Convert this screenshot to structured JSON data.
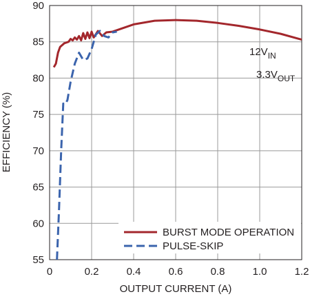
{
  "chart_data": {
    "type": "line",
    "xlabel": "OUTPUT CURRENT (A)",
    "ylabel": "EFFICIENCY (%)",
    "xlim": [
      0,
      1.2
    ],
    "xticks": [
      0,
      0.2,
      0.4,
      0.6,
      0.8,
      {
        "value": 1,
        "label": "1.0"
      },
      1.2
    ],
    "ylim": [
      55,
      90
    ],
    "yticks": [
      55,
      60,
      65,
      70,
      75,
      80,
      85,
      90
    ],
    "grid": true,
    "legend": "lower right",
    "annotations": [
      {
        "text": "12V",
        "sub": "IN"
      },
      {
        "text": "3.3V",
        "sub": "OUT"
      }
    ],
    "series": [
      {
        "name": "BURST MODE OPERATION",
        "color": "#a3272c",
        "style": "solid",
        "x": [
          0.02,
          0.03,
          0.04,
          0.05,
          0.07,
          0.09,
          0.1,
          0.11,
          0.12,
          0.13,
          0.14,
          0.15,
          0.16,
          0.17,
          0.18,
          0.19,
          0.2,
          0.21,
          0.23,
          0.25,
          0.27,
          0.3,
          0.35,
          0.4,
          0.5,
          0.6,
          0.7,
          0.8,
          0.9,
          1.0,
          1.1,
          1.2
        ],
        "values": [
          81.5,
          82,
          83.5,
          84.3,
          84.8,
          85.0,
          85.4,
          85.2,
          85.6,
          85.3,
          85.8,
          85.2,
          86.2,
          85.4,
          86.3,
          85.5,
          86.4,
          85.6,
          86.5,
          85.8,
          86.3,
          86.4,
          86.9,
          87.4,
          87.9,
          88.0,
          87.9,
          87.6,
          87.2,
          86.7,
          86.1,
          85.3
        ]
      },
      {
        "name": "PULSE-SKIP",
        "color": "#3b64ad",
        "style": "dashed",
        "x": [
          0.035,
          0.045,
          0.055,
          0.065,
          0.075,
          0.085,
          0.1,
          0.12,
          0.14,
          0.16,
          0.18,
          0.2,
          0.22,
          0.24,
          0.26,
          0.28,
          0.3,
          0.32
        ],
        "values": [
          55,
          62,
          70,
          76.5,
          76.4,
          77,
          79.5,
          82,
          83.5,
          82.5,
          82.7,
          84,
          86,
          86.5,
          85.8,
          85.6,
          86.3,
          86.4
        ]
      }
    ]
  }
}
